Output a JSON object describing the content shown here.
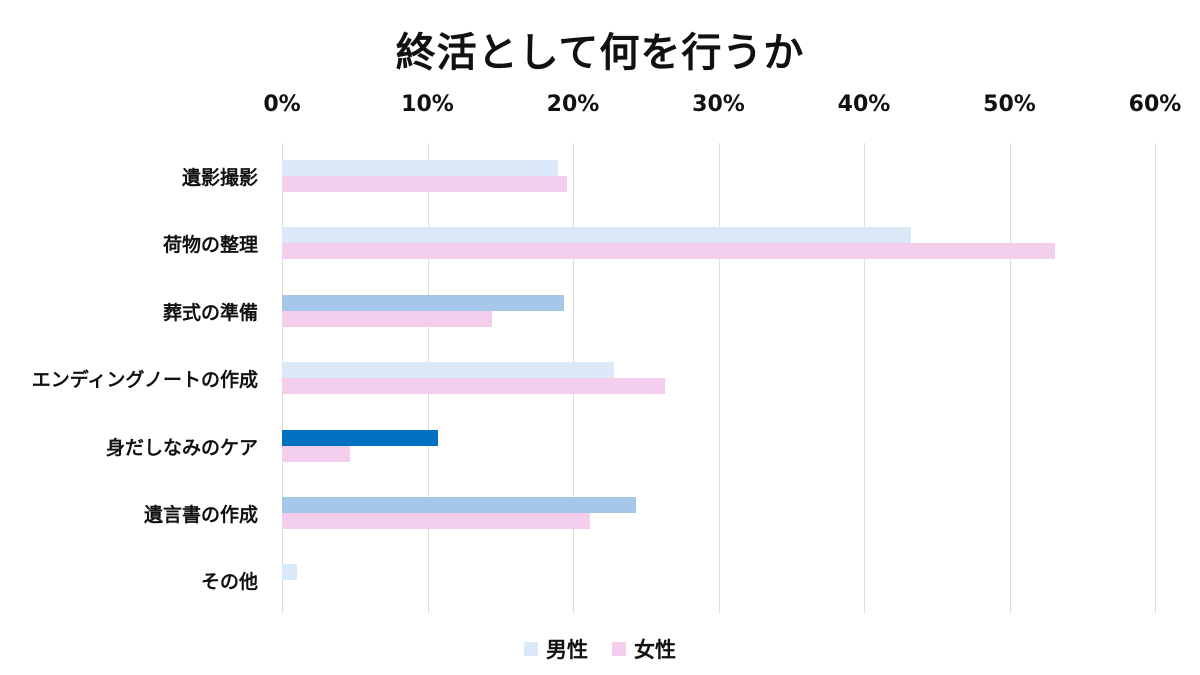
{
  "chart_data": {
    "type": "bar",
    "orientation": "horizontal",
    "title": "終活として何を行うか",
    "xlabel": "",
    "ylabel": "",
    "xlim": [
      0,
      60
    ],
    "x_ticks": [
      "0%",
      "10%",
      "20%",
      "30%",
      "40%",
      "50%",
      "60%"
    ],
    "grid": true,
    "legend_position": "bottom",
    "categories": [
      "遺影撮影",
      "荷物の整理",
      "葬式の準備",
      "エンディングノートの作成",
      "身だしなみのケア",
      "遺言書の作成",
      "その他"
    ],
    "series": [
      {
        "name": "男性",
        "color": "#dae8f8",
        "values": [
          19.0,
          43.2,
          19.4,
          22.8,
          10.7,
          24.3,
          1.0
        ],
        "bar_colors": [
          "#dae8f8",
          "#dae8f8",
          "#a5c8ea",
          "#dae8f8",
          "#0070c0",
          "#a5c8ea",
          "#dae8f8"
        ]
      },
      {
        "name": "女性",
        "color": "#f2cdec",
        "values": [
          19.6,
          53.1,
          14.4,
          26.3,
          4.7,
          21.2,
          0
        ]
      }
    ],
    "unit": "%"
  },
  "legend": {
    "male": {
      "label": "男性",
      "color": "#dae8f8"
    },
    "female": {
      "label": "女性",
      "color": "#f2cdec"
    }
  }
}
